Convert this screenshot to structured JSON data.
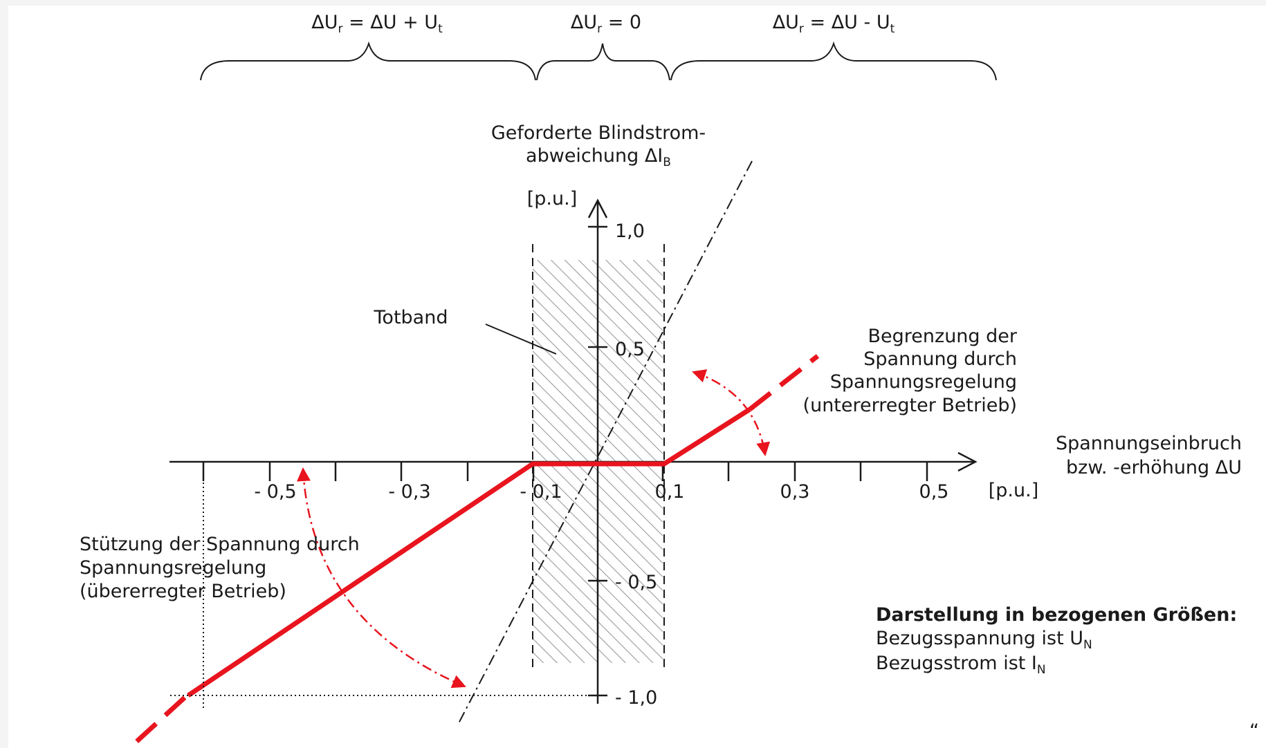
{
  "regions": {
    "left": {
      "main": "ΔU",
      "sub1": "r",
      "mid": " = ΔU + U",
      "sub2": "t"
    },
    "center": {
      "main": "ΔU",
      "sub1": "r",
      "mid": " = 0"
    },
    "right": {
      "main": "ΔU",
      "sub1": "r",
      "mid": " = ΔU - U",
      "sub2": "t"
    }
  },
  "y_axis": {
    "title_line1": "Geforderte Blindstrom-",
    "title_line2_main": "abweichung ΔI",
    "title_line2_sub": "B",
    "unit": "[p.u.]",
    "ticks": [
      "1,0",
      "0,5",
      "- 0,5",
      "- 1,0"
    ]
  },
  "x_axis": {
    "title_line1": "Spannungseinbruch",
    "title_line2": "bzw. -erhöhung  ΔU",
    "unit": "[p.u.]",
    "ticks": [
      "- 0,5",
      "- 0,3",
      "- 0,1",
      "0,1",
      "0,3",
      "0,5"
    ]
  },
  "deadband_label": "Totband",
  "upper_label": [
    "Begrenzung der",
    "Spannung durch",
    "Spannungsregelung",
    "(untererregter Betrieb)"
  ],
  "lower_label": [
    "Stützung der Spannung durch",
    "Spannungsregelung",
    "(übererregter Betrieb)"
  ],
  "note": {
    "heading": "Darstellung in bezogenen Größen:",
    "line1_main": "Bezugsspannung ist U",
    "line1_sub": "N",
    "line2_main": "Bezugsstrom ist I",
    "line2_sub": "N"
  },
  "corner_mark": "“",
  "colors": {
    "characteristic": "#e8141e",
    "axis": "#1a1a1a",
    "hatch": "#9a9a9a"
  }
}
